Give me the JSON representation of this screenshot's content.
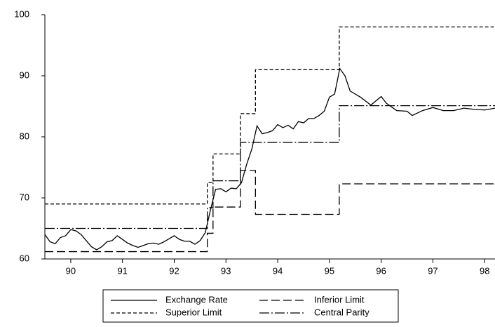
{
  "chart_data": {
    "type": "line",
    "xlim": [
      89.5,
      98.2
    ],
    "xticks": [
      90,
      91,
      92,
      93,
      94,
      95,
      96,
      97,
      98
    ],
    "ylim": [
      60,
      100
    ],
    "yticks": [
      60,
      70,
      80,
      90,
      100
    ],
    "legend": "bottom",
    "series": [
      {
        "name": "Exchange Rate",
        "color": "#000000",
        "line_style": "solid",
        "x": [
          89.5,
          89.6,
          89.7,
          89.8,
          89.9,
          90.0,
          90.1,
          90.2,
          90.3,
          90.4,
          90.5,
          90.6,
          90.7,
          90.8,
          90.9,
          91.0,
          91.1,
          91.2,
          91.3,
          91.4,
          91.5,
          91.6,
          91.7,
          91.8,
          91.9,
          92.0,
          92.1,
          92.2,
          92.3,
          92.4,
          92.5,
          92.6,
          92.7,
          92.8,
          92.9,
          93.0,
          93.1,
          93.2,
          93.3,
          93.4,
          93.5,
          93.6,
          93.7,
          93.8,
          93.9,
          94.0,
          94.1,
          94.2,
          94.3,
          94.4,
          94.5,
          94.6,
          94.7,
          94.8,
          94.9,
          95.0,
          95.1,
          95.2,
          95.3,
          95.4,
          95.6,
          95.8,
          96.0,
          96.1,
          96.3,
          96.5,
          96.6,
          96.8,
          97.0,
          97.2,
          97.4,
          97.6,
          97.8,
          98.0,
          98.2
        ],
        "values": [
          64,
          62.8,
          62.5,
          63.5,
          63.8,
          64.8,
          64.6,
          64,
          63,
          62,
          61.5,
          62,
          62.8,
          63,
          63.8,
          63.2,
          62.6,
          62.2,
          61.9,
          62.2,
          62.5,
          62.6,
          62.4,
          62.8,
          63.3,
          63.8,
          63.2,
          62.9,
          62.9,
          62.4,
          63,
          64.3,
          68,
          71.4,
          71.5,
          71,
          71.6,
          71.5,
          72.5,
          75.5,
          78,
          81.8,
          80.5,
          80.7,
          81,
          82,
          81.5,
          81.9,
          81.3,
          82.5,
          82.3,
          83,
          83,
          83.5,
          84.2,
          86.5,
          87,
          91.2,
          90,
          87.5,
          86.5,
          85.2,
          86.6,
          85.5,
          84.3,
          84.2,
          83.5,
          84.3,
          84.8,
          84.3,
          84.3,
          84.7,
          84.5,
          84.4,
          84.7
        ]
      },
      {
        "name": "Inferior Limit",
        "color": "#000000",
        "line_style": "long-dash",
        "x": [
          89.5,
          92.64,
          92.64,
          92.75,
          92.75,
          93.28,
          93.28,
          93.57,
          93.57,
          95.19,
          95.19,
          98.2
        ],
        "values": [
          61.2,
          61.2,
          64.2,
          64.2,
          68.5,
          68.5,
          74.5,
          74.5,
          67.3,
          67.3,
          72.3,
          72.3
        ]
      },
      {
        "name": "Superior Limit",
        "color": "#000000",
        "line_style": "short-dash",
        "x": [
          89.5,
          92.64,
          92.64,
          92.75,
          92.75,
          93.28,
          93.28,
          93.57,
          93.57,
          95.19,
          95.19,
          98.2
        ],
        "values": [
          69,
          69,
          72.5,
          72.5,
          77.2,
          77.2,
          83.8,
          83.8,
          91,
          91,
          98,
          98
        ]
      },
      {
        "name": "Central Parity",
        "color": "#000000",
        "line_style": "dash-dot",
        "x": [
          89.5,
          92.64,
          92.64,
          92.75,
          92.75,
          93.28,
          93.28,
          95.19,
          95.19,
          98.2
        ],
        "values": [
          65,
          65,
          68.4,
          68.4,
          72.8,
          72.8,
          79.1,
          79.1,
          85.1,
          85.1
        ]
      }
    ]
  }
}
